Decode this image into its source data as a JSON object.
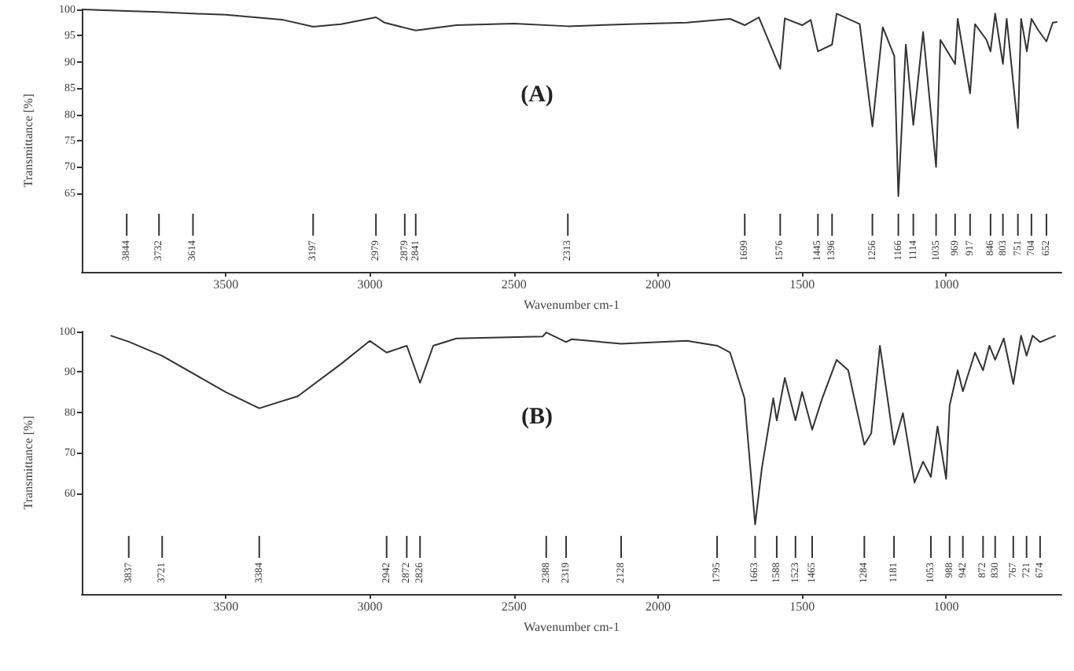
{
  "chart_data": [
    {
      "type": "line",
      "title": "(A)",
      "xlabel": "Wavenumber cm-1",
      "ylabel": "Transmittance [%]",
      "xlim": [
        4000,
        600
      ],
      "ylim": [
        50,
        100
      ],
      "xticks": [
        3500,
        3000,
        2500,
        2000,
        1500,
        1000
      ],
      "yticks": [
        65,
        70,
        75,
        80,
        85,
        90,
        95,
        100
      ],
      "grid": false,
      "marker": "none",
      "line_style": "solid",
      "series": [
        {
          "color": "#333333",
          "x": [
            4000,
            3844,
            3732,
            3614,
            3500,
            3300,
            3197,
            3100,
            2979,
            2950,
            2879,
            2841,
            2700,
            2500,
            2313,
            2100,
            1900,
            1750,
            1699,
            1650,
            1576,
            1560,
            1500,
            1470,
            1445,
            1396,
            1380,
            1300,
            1256,
            1220,
            1180,
            1166,
            1140,
            1114,
            1080,
            1035,
            1020,
            969,
            960,
            917,
            900,
            860,
            846,
            830,
            803,
            790,
            751,
            740,
            720,
            704,
            680,
            652,
            630,
            614
          ],
          "values": [
            100,
            99.7,
            99.5,
            99.2,
            99,
            98,
            96.7,
            97.2,
            98.5,
            97.5,
            96.5,
            96,
            97,
            97.3,
            96.8,
            97.2,
            97.5,
            98.2,
            97,
            98.5,
            88.7,
            98.3,
            97,
            98,
            92,
            93.3,
            99.2,
            97.2,
            77.7,
            96.6,
            91.1,
            64.4,
            93.3,
            78,
            95.7,
            70,
            94.2,
            89.6,
            98.2,
            84,
            97.2,
            94.2,
            92,
            99.2,
            89.6,
            98.2,
            77.4,
            98.2,
            92,
            98.2,
            96,
            93.9,
            97.5,
            97.6
          ]
        }
      ],
      "ref_lines": [
        {
          "axis": "x",
          "value": 3844,
          "label": "3844"
        },
        {
          "axis": "x",
          "value": 3732,
          "label": "3732"
        },
        {
          "axis": "x",
          "value": 3614,
          "label": "3614"
        },
        {
          "axis": "x",
          "value": 3197,
          "label": "3197"
        },
        {
          "axis": "x",
          "value": 2979,
          "label": "2979"
        },
        {
          "axis": "x",
          "value": 2879,
          "label": "2879"
        },
        {
          "axis": "x",
          "value": 2841,
          "label": "2841"
        },
        {
          "axis": "x",
          "value": 2313,
          "label": "2313"
        },
        {
          "axis": "x",
          "value": 1699,
          "label": "1699"
        },
        {
          "axis": "x",
          "value": 1576,
          "label": "1576"
        },
        {
          "axis": "x",
          "value": 1445,
          "label": "1445"
        },
        {
          "axis": "x",
          "value": 1396,
          "label": "1396"
        },
        {
          "axis": "x",
          "value": 1256,
          "label": "1256"
        },
        {
          "axis": "x",
          "value": 1166,
          "label": "1166"
        },
        {
          "axis": "x",
          "value": 1114,
          "label": "1114"
        },
        {
          "axis": "x",
          "value": 1035,
          "label": "1035"
        },
        {
          "axis": "x",
          "value": 969,
          "label": "969"
        },
        {
          "axis": "x",
          "value": 917,
          "label": "917"
        },
        {
          "axis": "x",
          "value": 846,
          "label": "846"
        },
        {
          "axis": "x",
          "value": 803,
          "label": "803"
        },
        {
          "axis": "x",
          "value": 751,
          "label": "751"
        },
        {
          "axis": "x",
          "value": 704,
          "label": "704"
        },
        {
          "axis": "x",
          "value": 652,
          "label": "652"
        }
      ]
    },
    {
      "type": "line",
      "title": "(B)",
      "xlabel": "Wavenumber cm-1",
      "ylabel": "Transmittance [%]",
      "xlim": [
        4000,
        600
      ],
      "ylim": [
        35,
        100
      ],
      "xticks": [
        3500,
        3000,
        2500,
        2000,
        1500,
        1000
      ],
      "yticks": [
        60,
        70,
        80,
        90,
        100
      ],
      "grid": false,
      "marker": "none",
      "line_style": "solid",
      "series": [
        {
          "color": "#333333",
          "x": [
            3900,
            3837,
            3721,
            3500,
            3384,
            3250,
            3100,
            3000,
            2942,
            2872,
            2826,
            2780,
            2700,
            2400,
            2388,
            2319,
            2300,
            2128,
            1900,
            1795,
            1750,
            1700,
            1663,
            1640,
            1600,
            1588,
            1560,
            1523,
            1500,
            1465,
            1430,
            1380,
            1340,
            1284,
            1260,
            1230,
            1200,
            1181,
            1150,
            1110,
            1080,
            1053,
            1030,
            1000,
            988,
            960,
            942,
            900,
            872,
            850,
            830,
            800,
            767,
            740,
            721,
            700,
            674,
            620
          ],
          "values": [
            99,
            97.5,
            94,
            85,
            81,
            84,
            92,
            97.7,
            94.8,
            96.5,
            87.3,
            96.5,
            98.3,
            98.8,
            99.8,
            97.4,
            98.1,
            97,
            97.7,
            96.5,
            94.8,
            83.5,
            52.2,
            66,
            83.5,
            78,
            88.5,
            78,
            85,
            75.7,
            83.5,
            93,
            90.4,
            72,
            74.8,
            96.5,
            81.7,
            72,
            79.8,
            62.6,
            67.8,
            64,
            76.5,
            63.5,
            81.7,
            90.4,
            85.2,
            94.8,
            90.4,
            96.5,
            93,
            98.3,
            87,
            99,
            94,
            99,
            97.4,
            99
          ]
        }
      ],
      "ref_lines": [
        {
          "axis": "x",
          "value": 3837,
          "label": "3837"
        },
        {
          "axis": "x",
          "value": 3721,
          "label": "3721"
        },
        {
          "axis": "x",
          "value": 3384,
          "label": "3384"
        },
        {
          "axis": "x",
          "value": 2942,
          "label": "2942"
        },
        {
          "axis": "x",
          "value": 2872,
          "label": "2872"
        },
        {
          "axis": "x",
          "value": 2826,
          "label": "2826"
        },
        {
          "axis": "x",
          "value": 2388,
          "label": "2388"
        },
        {
          "axis": "x",
          "value": 2319,
          "label": "2319"
        },
        {
          "axis": "x",
          "value": 2128,
          "label": "2128"
        },
        {
          "axis": "x",
          "value": 1795,
          "label": "1795"
        },
        {
          "axis": "x",
          "value": 1663,
          "label": "1663"
        },
        {
          "axis": "x",
          "value": 1588,
          "label": "1588"
        },
        {
          "axis": "x",
          "value": 1523,
          "label": "1523"
        },
        {
          "axis": "x",
          "value": 1465,
          "label": "1465"
        },
        {
          "axis": "x",
          "value": 1284,
          "label": "1284"
        },
        {
          "axis": "x",
          "value": 1181,
          "label": "1181"
        },
        {
          "axis": "x",
          "value": 1053,
          "label": "1053"
        },
        {
          "axis": "x",
          "value": 988,
          "label": "988"
        },
        {
          "axis": "x",
          "value": 942,
          "label": "942"
        },
        {
          "axis": "x",
          "value": 872,
          "label": "872"
        },
        {
          "axis": "x",
          "value": 830,
          "label": "830"
        },
        {
          "axis": "x",
          "value": 767,
          "label": "767"
        },
        {
          "axis": "x",
          "value": 721,
          "label": "721"
        },
        {
          "axis": "x",
          "value": 674,
          "label": "674"
        }
      ]
    }
  ]
}
